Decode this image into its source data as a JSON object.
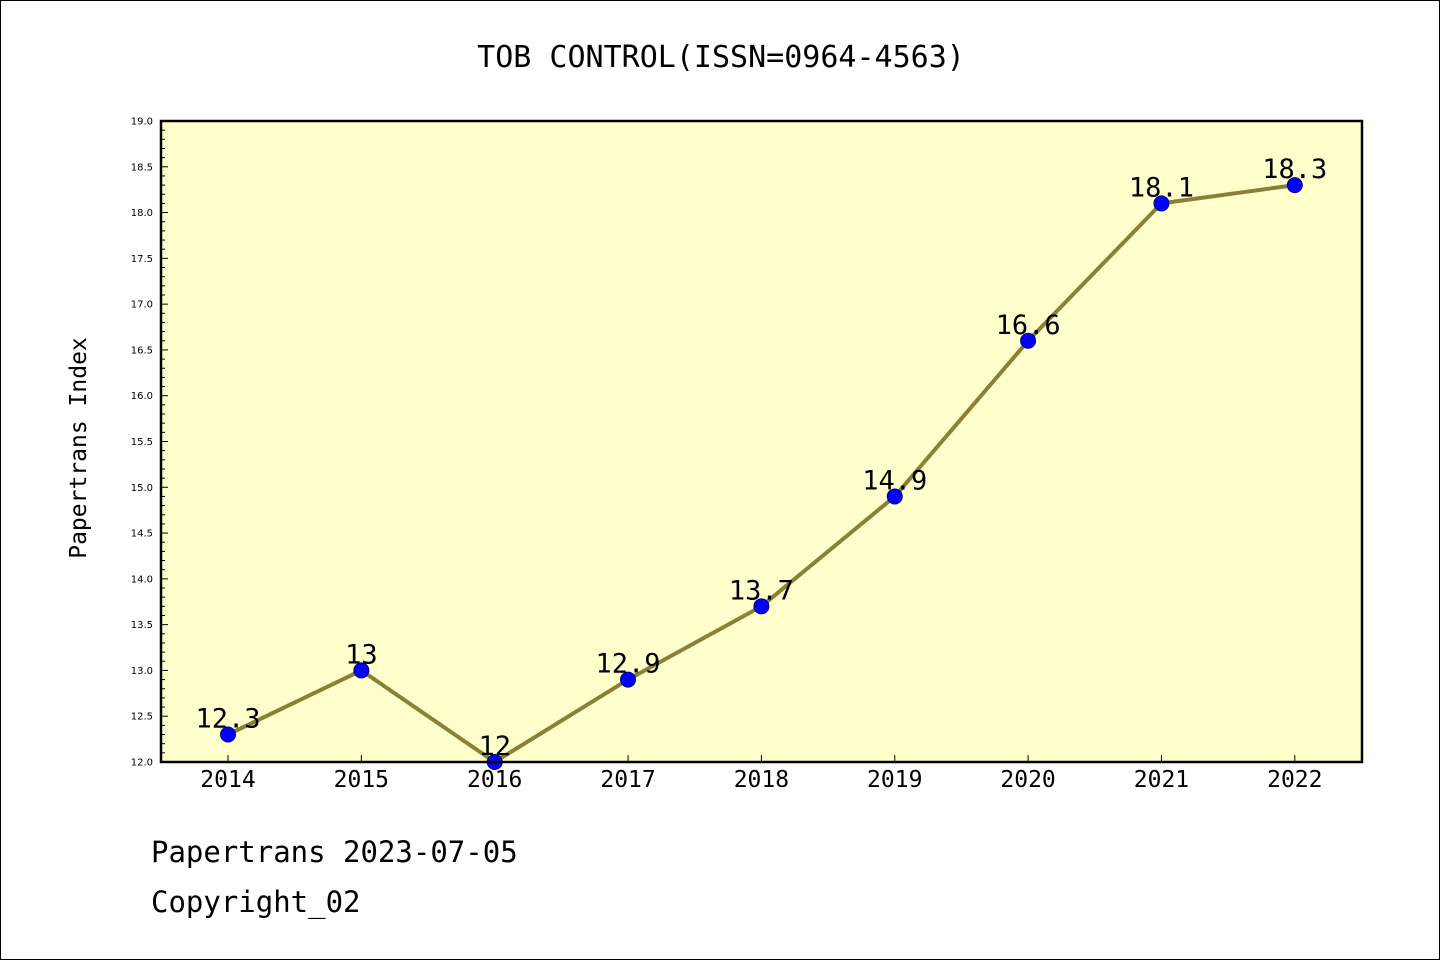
{
  "chart_data": {
    "type": "line",
    "title": "TOB CONTROL(ISSN=0964-4563)",
    "xlabel": "",
    "ylabel": "Papertrans Index",
    "categories": [
      "2014",
      "2015",
      "2016",
      "2017",
      "2018",
      "2019",
      "2020",
      "2021",
      "2022"
    ],
    "values": [
      12.3,
      13,
      12,
      12.9,
      13.7,
      14.9,
      16.6,
      18.1,
      18.3
    ],
    "data_labels": [
      "12.3",
      "13",
      "12",
      "12.9",
      "13.7",
      "14.9",
      "16.6",
      "18.1",
      "18.3"
    ],
    "ylim": [
      12.0,
      19.0
    ],
    "y_major_step": 0.5,
    "y_ticks": [
      "12.0",
      "12.5",
      "13.0",
      "13.5",
      "14.0",
      "14.5",
      "15.0",
      "15.5",
      "16.0",
      "16.5",
      "17.0",
      "17.5",
      "18.0",
      "18.5",
      "19.0"
    ],
    "grid": false,
    "legend": "none",
    "colors": {
      "plot_background": "#ffffcc",
      "line": "#8b8038",
      "marker_fill": "#0000ff",
      "marker_edge": "#00008b"
    }
  },
  "footer": {
    "line1": "Papertrans 2023-07-05",
    "line2": "Copyright_02"
  }
}
